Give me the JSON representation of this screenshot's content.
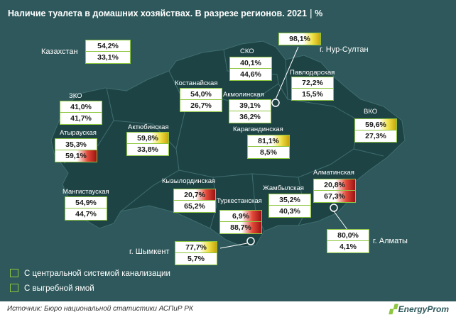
{
  "title": "Наличие туалета в домашних хозяйствах. В разрезе регионов. 2021",
  "unit": "%",
  "colors": {
    "background": "#2e585b",
    "map_fill": "#1f4446",
    "border": "#8dc63f",
    "high": "#c9a40a",
    "low": "#9c1212"
  },
  "kazakhstan": {
    "label": "Казахстан",
    "sewer": "54,2%",
    "pit": "33,1%"
  },
  "regions": {
    "sko": {
      "label": "СКО",
      "sewer": "40,1%",
      "pit": "44,6%"
    },
    "nur_sultan": {
      "label": "г. Нур-Султан",
      "sewer": "98,1%"
    },
    "pavlodar": {
      "label": "Павлодарская",
      "sewer": "72,2%",
      "pit": "15,5%"
    },
    "kostanay": {
      "label": "Костанайская",
      "sewer": "54,0%",
      "pit": "26,7%"
    },
    "akmola": {
      "label": "Акмолинская",
      "sewer": "39,1%",
      "pit": "36,2%"
    },
    "zko": {
      "label": "ЗКО",
      "sewer": "41,0%",
      "pit": "41,7%"
    },
    "atyrau": {
      "label": "Атырауская",
      "sewer": "35,3%",
      "pit": "59,1%"
    },
    "aktobe": {
      "label": "Актюбинская",
      "sewer": "59,8%",
      "pit": "33,8%"
    },
    "karaganda": {
      "label": "Карагандинская",
      "sewer": "81,1%",
      "pit": "8,5%"
    },
    "vko": {
      "label": "ВКО",
      "sewer": "59,6%",
      "pit": "27,3%"
    },
    "mangistau": {
      "label": "Мангистауская",
      "sewer": "54,9%",
      "pit": "44,7%"
    },
    "kyzylorda": {
      "label": "Кызылординская",
      "sewer": "20,7%",
      "pit": "65,2%"
    },
    "turkestan": {
      "label": "Туркестанская",
      "sewer": "6,9%",
      "pit": "88,7%"
    },
    "zhambyl": {
      "label": "Жамбылская",
      "sewer": "35,2%",
      "pit": "40,3%"
    },
    "almaty_obl": {
      "label": "Алматинская",
      "sewer": "20,8%",
      "pit": "67,3%"
    },
    "almaty": {
      "label": "г. Алматы",
      "sewer": "80,0%",
      "pit": "4,1%"
    },
    "shymkent": {
      "label": "г. Шымкент",
      "sewer": "77,7%",
      "pit": "5,7%"
    }
  },
  "legend": {
    "sewer": "С центральной системой канализации",
    "pit": "С выгребной ямой"
  },
  "source": "Источник: Бюро национальной статистики АСПиР РК",
  "brand": "EnergyProm"
}
